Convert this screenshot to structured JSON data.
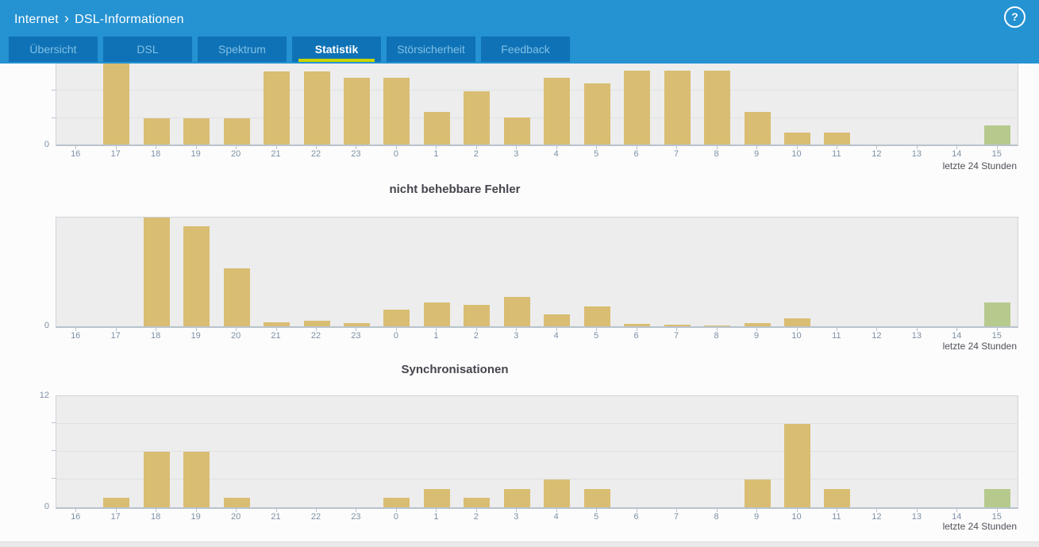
{
  "header": {
    "breadcrumb": {
      "section": "Internet",
      "separator": "›",
      "page": "DSL-Informationen"
    },
    "help_icon_glyph": "?"
  },
  "tabs": {
    "active": "Statistik",
    "items": [
      {
        "label": "Übersicht"
      },
      {
        "label": "DSL"
      },
      {
        "label": "Spektrum"
      },
      {
        "label": "Statistik"
      },
      {
        "label": "Störsicherheit"
      },
      {
        "label": "Feedback"
      }
    ]
  },
  "colors": {
    "header_blue": "#2592d2",
    "tab_blue": "#0f72b6",
    "active_tab_underline": "#c9d400",
    "bar_default": "#d9bd72",
    "bar_current_hour": "#b6ca8d",
    "plot_background": "#ededed"
  },
  "chart_data": [
    {
      "type": "bar",
      "title": "",
      "categories": [
        "16",
        "17",
        "18",
        "19",
        "20",
        "21",
        "22",
        "23",
        "0",
        "1",
        "2",
        "3",
        "4",
        "5",
        "6",
        "7",
        "8",
        "9",
        "10",
        "11",
        "12",
        "13",
        "14",
        "15"
      ],
      "values": [
        0,
        1,
        0.32,
        0.32,
        0.32,
        0.9,
        0.9,
        0.82,
        0.82,
        0.4,
        0.66,
        0.33,
        0.82,
        0.75,
        0.91,
        0.91,
        0.91,
        0.4,
        0.15,
        0.15,
        0,
        0,
        0,
        0.24
      ],
      "ymax": 1,
      "y_axis_labels": [
        {
          "value": 0,
          "label": "0"
        }
      ],
      "gridlines": [
        0.324,
        0.667
      ],
      "highlight_index": 23,
      "footer": "letzte 24 Stunden"
    },
    {
      "type": "bar",
      "title": "nicht behebbare Fehler",
      "categories": [
        "16",
        "17",
        "18",
        "19",
        "20",
        "21",
        "22",
        "23",
        "0",
        "1",
        "2",
        "3",
        "4",
        "5",
        "6",
        "7",
        "8",
        "9",
        "10",
        "11",
        "12",
        "13",
        "14",
        "15"
      ],
      "values": [
        0,
        0,
        1,
        0.92,
        0.53,
        0.04,
        0.05,
        0.03,
        0.15,
        0.22,
        0.2,
        0.27,
        0.11,
        0.18,
        0.022,
        0.015,
        0.007,
        0.03,
        0.07,
        0,
        0,
        0,
        0,
        0.22
      ],
      "ymax": 1,
      "y_axis_labels": [
        {
          "value": 0,
          "label": "0"
        }
      ],
      "gridlines": [],
      "highlight_index": 23,
      "footer": "letzte 24 Stunden"
    },
    {
      "type": "bar",
      "title": "Synchronisationen",
      "categories": [
        "16",
        "17",
        "18",
        "19",
        "20",
        "21",
        "22",
        "23",
        "0",
        "1",
        "2",
        "3",
        "4",
        "5",
        "6",
        "7",
        "8",
        "9",
        "10",
        "11",
        "12",
        "13",
        "14",
        "15"
      ],
      "values": [
        0,
        1,
        6,
        6,
        1,
        0,
        0,
        0,
        1,
        2,
        1,
        2,
        3,
        2,
        0,
        0,
        0,
        3,
        9,
        2,
        0,
        0,
        0,
        2
      ],
      "ymax": 12,
      "ylim": [
        0,
        12
      ],
      "y_axis_labels": [
        {
          "value": 0,
          "label": "0"
        },
        {
          "value": 12,
          "label": "12"
        }
      ],
      "gridlines": [
        3,
        6,
        9
      ],
      "highlight_index": 23,
      "footer": "letzte 24 Stunden"
    }
  ]
}
